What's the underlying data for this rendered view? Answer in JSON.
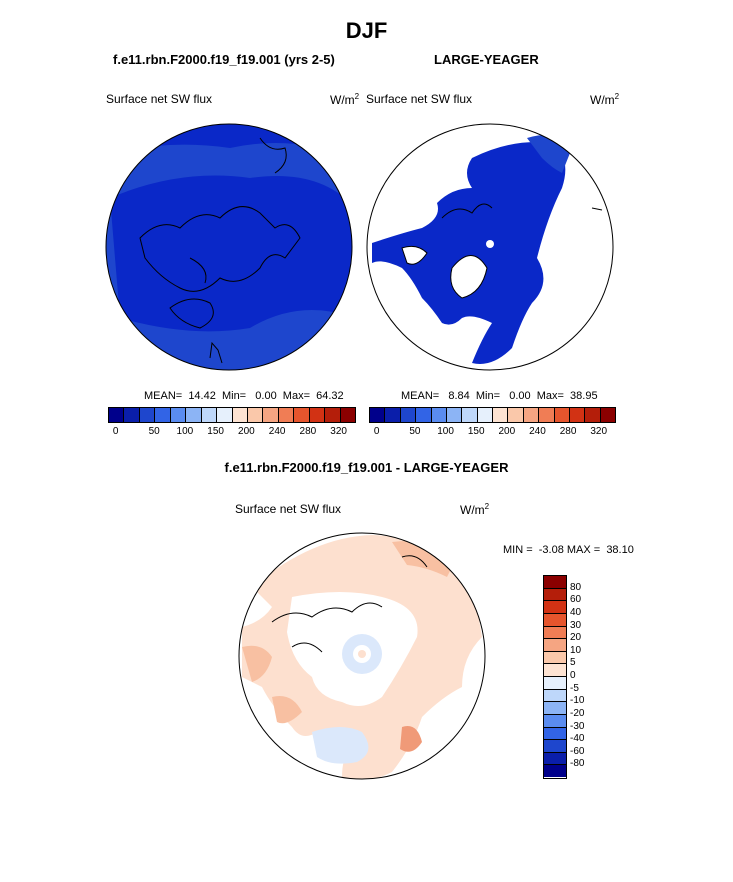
{
  "header": {
    "season": "DJF",
    "case_left": "f.e11.rbn.F2000.f19_f19.001 (yrs 2-5)",
    "case_right": "LARGE-YEAGER",
    "diff_title": "f.e11.rbn.F2000.f19_f19.001 - LARGE-YEAGER"
  },
  "panels": {
    "left": {
      "variable": "Surface net SW flux",
      "units": "W/m",
      "units_sup": "2",
      "stats": "MEAN=  14.42  Min=   0.00  Max=  64.32"
    },
    "right": {
      "variable": "Surface net SW flux",
      "units": "W/m",
      "units_sup": "2",
      "stats": "MEAN=   8.84  Min=   0.00  Max=  38.95"
    },
    "diff": {
      "variable": "Surface net SW flux",
      "units": "W/m",
      "units_sup": "2",
      "minmax": "MIN =  -3.08 MAX =  38.10"
    }
  },
  "colorbar_abs": {
    "colors": [
      "#00008b",
      "#0a1eaa",
      "#1e46cd",
      "#3264e6",
      "#5a8cf0",
      "#8cb4f5",
      "#bed7fa",
      "#e6f0fc",
      "#fde3d2",
      "#fac8aa",
      "#f5a582",
      "#f07d55",
      "#e6552d",
      "#d23214",
      "#b41e0a",
      "#8b0000"
    ],
    "ticks": [
      "0",
      "50",
      "100",
      "150",
      "200",
      "240",
      "280",
      "320"
    ]
  },
  "colorbar_diff": {
    "colors": [
      "#8b0000",
      "#b41e0a",
      "#d23214",
      "#e6552d",
      "#f07d55",
      "#f5a582",
      "#fac8aa",
      "#fde3d2",
      "#e6f0fc",
      "#bed7fa",
      "#8cb4f5",
      "#5a8cf0",
      "#3264e6",
      "#1e46cd",
      "#0a1eaa",
      "#00008b"
    ],
    "ticks": [
      "80",
      "60",
      "40",
      "30",
      "20",
      "10",
      "5",
      "0",
      "-5",
      "-10",
      "-20",
      "-30",
      "-40",
      "-60",
      "-80"
    ]
  },
  "map_colors": {
    "deep_blue": "#0a28c8",
    "mid_blue": "#1e46cd",
    "light_blue": "#dbe8fb",
    "peach": "#fde0cf",
    "salmon": "#f8c0a2",
    "coral": "#f09a78"
  }
}
